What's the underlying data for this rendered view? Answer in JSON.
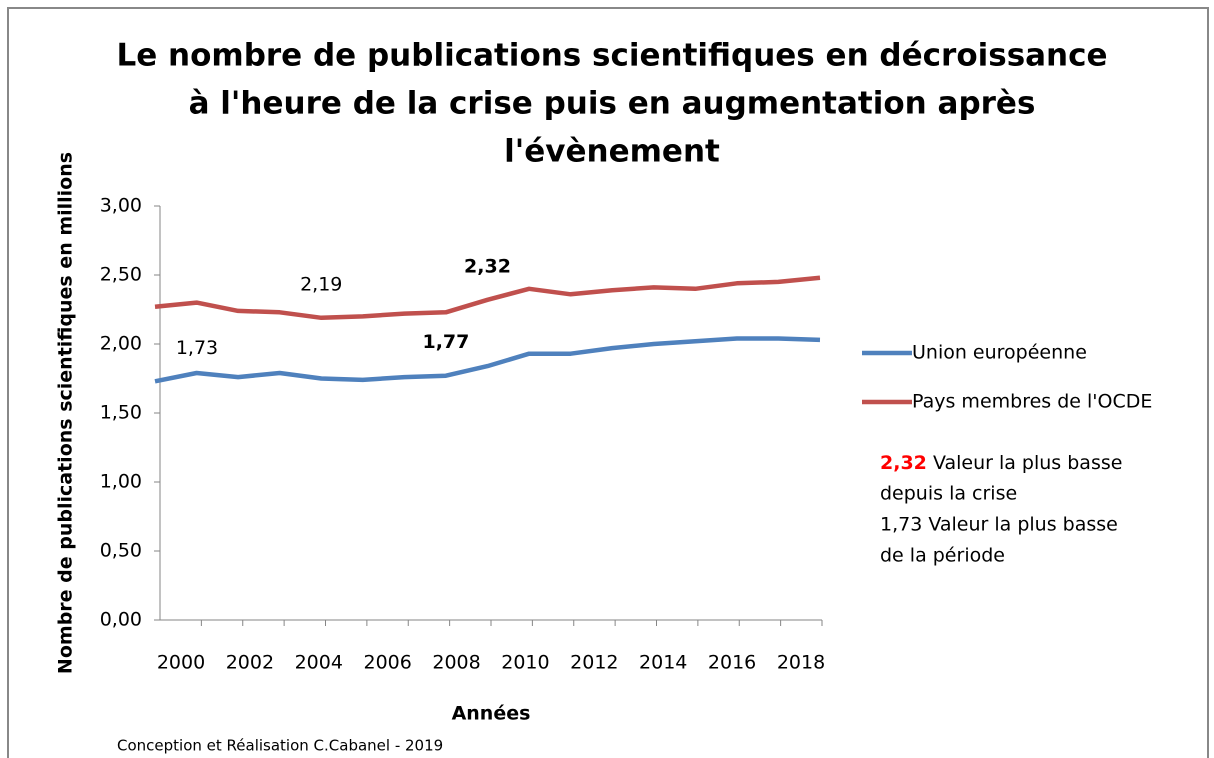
{
  "chart_data": {
    "type": "line",
    "title": [
      "Le nombre de publications scientifiques en décroissance",
      "à l'heure de la crise puis en augmentation après",
      "l'évènement"
    ],
    "x_label": "Années",
    "y_label": "Nombre de publications scientifiques en millions",
    "categories": [
      2000,
      2001,
      2002,
      2003,
      2004,
      2005,
      2006,
      2007,
      2008,
      2009,
      2010,
      2011,
      2012,
      2013,
      2014,
      2015,
      2016
    ],
    "xticks": [
      2000,
      2002,
      2004,
      2006,
      2008,
      2010,
      2012,
      2014,
      2016,
      2018
    ],
    "ylim": [
      0,
      3
    ],
    "yticks": [
      {
        "value": 0,
        "label": "0,00"
      },
      {
        "value": 0.5,
        "label": "0,50"
      },
      {
        "value": 1,
        "label": "1,00"
      },
      {
        "value": 1.5,
        "label": "1,50"
      },
      {
        "value": 2,
        "label": "2,00"
      },
      {
        "value": 2.5,
        "label": "2,50"
      },
      {
        "value": 3,
        "label": "3,00"
      }
    ],
    "series": [
      {
        "name": "Union européenne",
        "color": "#4f81bd",
        "values": [
          1.73,
          1.79,
          1.76,
          1.79,
          1.75,
          1.74,
          1.76,
          1.77,
          1.84,
          1.93,
          1.93,
          1.97,
          2.0,
          2.02,
          2.04,
          2.04,
          2.03
        ],
        "value_labels": [
          "1,73",
          null,
          null,
          null,
          null,
          null,
          null,
          "1,77",
          null,
          null,
          null,
          null,
          null,
          null,
          null,
          null,
          null
        ],
        "value_label_colors": [
          "#000000",
          null,
          null,
          null,
          null,
          null,
          null,
          "#ff0000",
          null,
          null,
          null,
          null,
          null,
          null,
          null,
          null,
          null
        ]
      },
      {
        "name": "Pays membres de l'OCDE",
        "color": "#c0504d",
        "values": [
          2.27,
          2.3,
          2.24,
          2.23,
          2.19,
          2.2,
          2.22,
          2.23,
          2.32,
          2.4,
          2.36,
          2.39,
          2.41,
          2.4,
          2.44,
          2.45,
          2.48
        ],
        "value_labels": [
          null,
          null,
          null,
          null,
          "2,19",
          null,
          null,
          null,
          "2,32",
          null,
          null,
          null,
          null,
          null,
          null,
          null,
          null
        ],
        "value_label_colors": [
          null,
          null,
          null,
          null,
          "#000000",
          null,
          null,
          null,
          "#ff0000",
          null,
          null,
          null,
          null,
          null,
          null,
          null,
          null
        ]
      }
    ],
    "note": [
      "2,32",
      "Valeur la plus basse",
      "depuis la crise",
      "1,73 Valeur la plus basse",
      "de la période"
    ],
    "note_highlight_color": "#ff0000",
    "footer": "Conception et Réalisation C.Cabanel - 2019"
  }
}
